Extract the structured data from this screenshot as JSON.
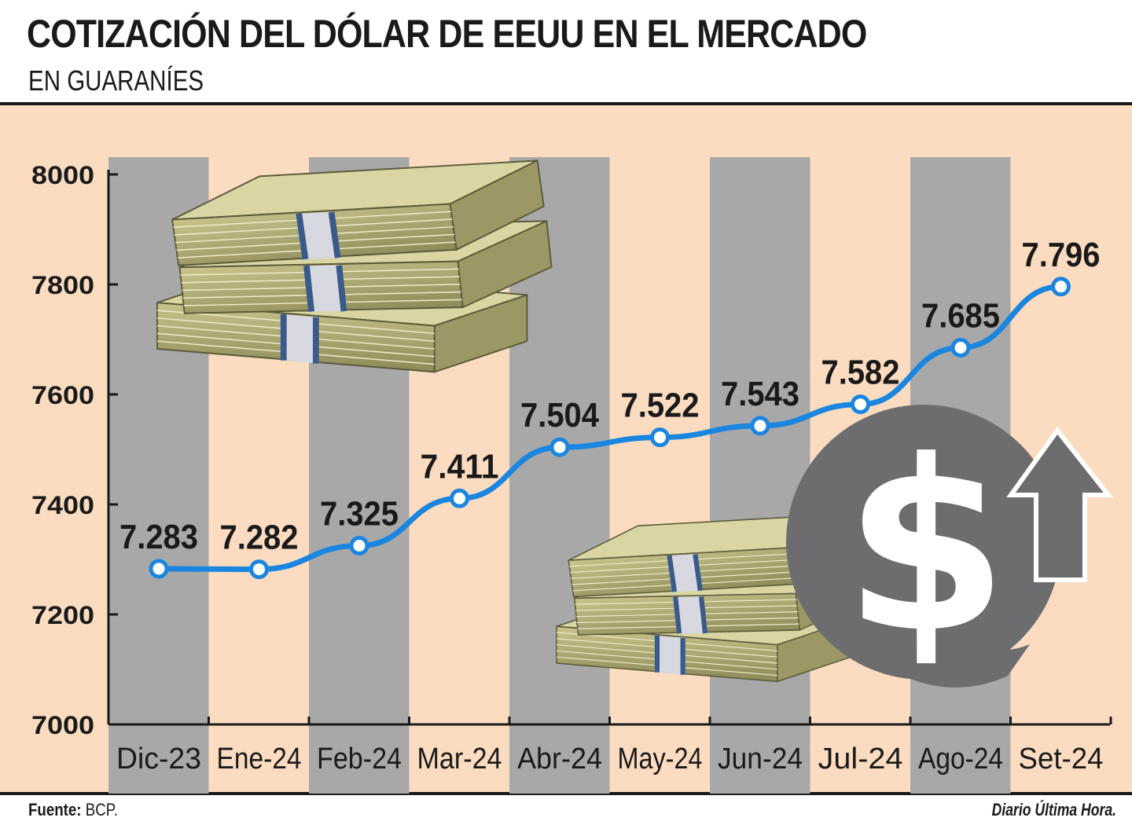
{
  "header": {
    "title": "COTIZACIÓN DEL DÓLAR DE EEUU EN EL MERCADO",
    "subtitle": "EN GUARANÍES"
  },
  "footer": {
    "source_label": "Fuente:",
    "source_value": "BCP.",
    "credit": "Diario Última Hora."
  },
  "colors": {
    "panel_background": "#fbdcc0",
    "column_band": "#a9a8a8",
    "line": "#1a86e0",
    "marker_fill": "#ffffff",
    "text": "#1a1a1a",
    "coin": "#6d6d6f"
  },
  "illustrations": [
    "money-stack-icon",
    "money-stack-icon",
    "dollar-coin-icon",
    "up-arrow-icon"
  ],
  "chart_data": {
    "type": "line",
    "title": "COTIZACIÓN DEL DÓLAR DE EEUU EN EL MERCADO",
    "subtitle": "EN GUARANÍES",
    "xlabel": "",
    "ylabel": "",
    "categories": [
      "Dic-23",
      "Ene-24",
      "Feb-24",
      "Mar-24",
      "Abr-24",
      "May-24",
      "Jun-24",
      "Jul-24",
      "Ago-24",
      "Set-24"
    ],
    "values": [
      7283,
      7282,
      7325,
      7411,
      7504,
      7522,
      7543,
      7582,
      7685,
      7796
    ],
    "data_labels": [
      "7.283",
      "7.282",
      "7.325",
      "7.411",
      "7.504",
      "7.522",
      "7.543",
      "7.582",
      "7.685",
      "7.796"
    ],
    "ylim": [
      7000,
      8000
    ],
    "yticks": [
      7000,
      7200,
      7400,
      7600,
      7800,
      8000
    ],
    "ytick_labels": [
      "7000",
      "7200",
      "7400",
      "7600",
      "7800",
      "8000"
    ],
    "grid": false,
    "legend": "none"
  }
}
